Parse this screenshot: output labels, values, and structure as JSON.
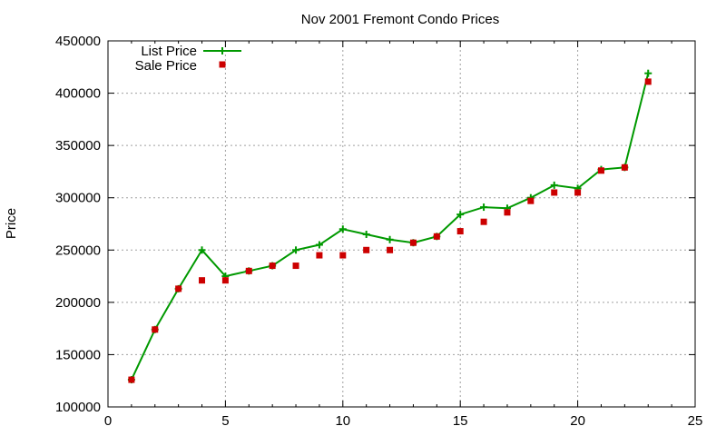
{
  "chart_data": {
    "type": "line",
    "title": "Nov 2001 Fremont Condo Prices",
    "xlabel": "",
    "ylabel": "Price",
    "xlim": [
      0,
      25
    ],
    "ylim": [
      100000,
      450000
    ],
    "x_ticks": [
      0,
      5,
      10,
      15,
      20,
      25
    ],
    "y_ticks": [
      100000,
      150000,
      200000,
      250000,
      300000,
      350000,
      400000,
      450000
    ],
    "grid": true,
    "legend_position": "top-left",
    "x": [
      1,
      2,
      3,
      4,
      5,
      6,
      7,
      8,
      9,
      10,
      11,
      12,
      13,
      14,
      15,
      16,
      17,
      18,
      19,
      20,
      21,
      22,
      23
    ],
    "series": [
      {
        "name": "List Price",
        "style": "line-with-plus-markers",
        "color": "#009900",
        "values": [
          126000,
          174000,
          213000,
          250000,
          225000,
          230000,
          235000,
          250000,
          255000,
          270000,
          265000,
          260000,
          257000,
          263000,
          284000,
          291000,
          290000,
          300000,
          312000,
          309000,
          327000,
          329000,
          419000
        ]
      },
      {
        "name": "Sale Price",
        "style": "square-markers",
        "color": "#cc0000",
        "values": [
          126000,
          174000,
          213000,
          221000,
          221000,
          230000,
          235000,
          235000,
          245000,
          245000,
          250000,
          250000,
          257000,
          263000,
          268000,
          277000,
          286000,
          297000,
          305000,
          305000,
          326000,
          329000,
          411000
        ]
      }
    ]
  }
}
